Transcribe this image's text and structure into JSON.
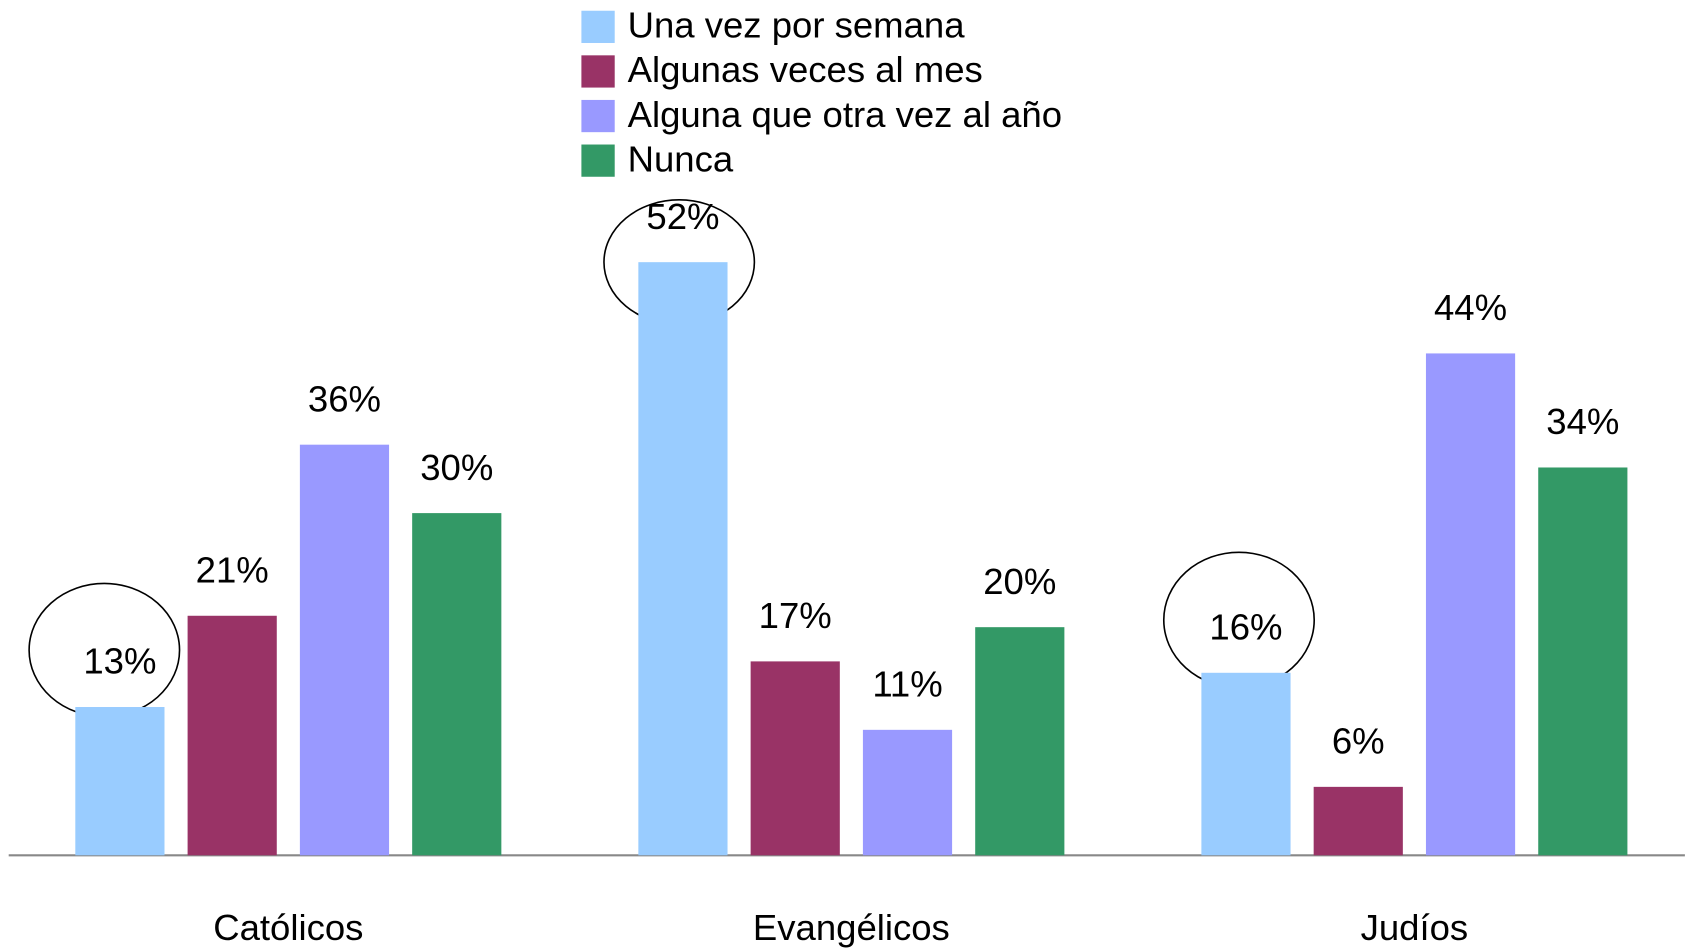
{
  "chart_data": {
    "type": "bar",
    "categories": [
      "Católicos",
      "Evangélicos",
      "Judíos"
    ],
    "series": [
      {
        "name": "Una vez por semana",
        "color": "#99ccff",
        "values": [
          13,
          52,
          16
        ],
        "value_labels": [
          "13%",
          "52%",
          "16%"
        ]
      },
      {
        "name": "Algunas veces al mes",
        "color": "#993366",
        "values": [
          21,
          17,
          6
        ],
        "value_labels": [
          "21%",
          "17%",
          "6%"
        ]
      },
      {
        "name": "Alguna que otra vez al año",
        "color": "#9999ff",
        "values": [
          36,
          11,
          44
        ],
        "value_labels": [
          "36%",
          "11%",
          "44%"
        ]
      },
      {
        "name": "Nunca",
        "color": "#339966",
        "values": [
          30,
          20,
          34
        ],
        "value_labels": [
          "30%",
          "20%",
          "34%"
        ]
      }
    ]
  }
}
